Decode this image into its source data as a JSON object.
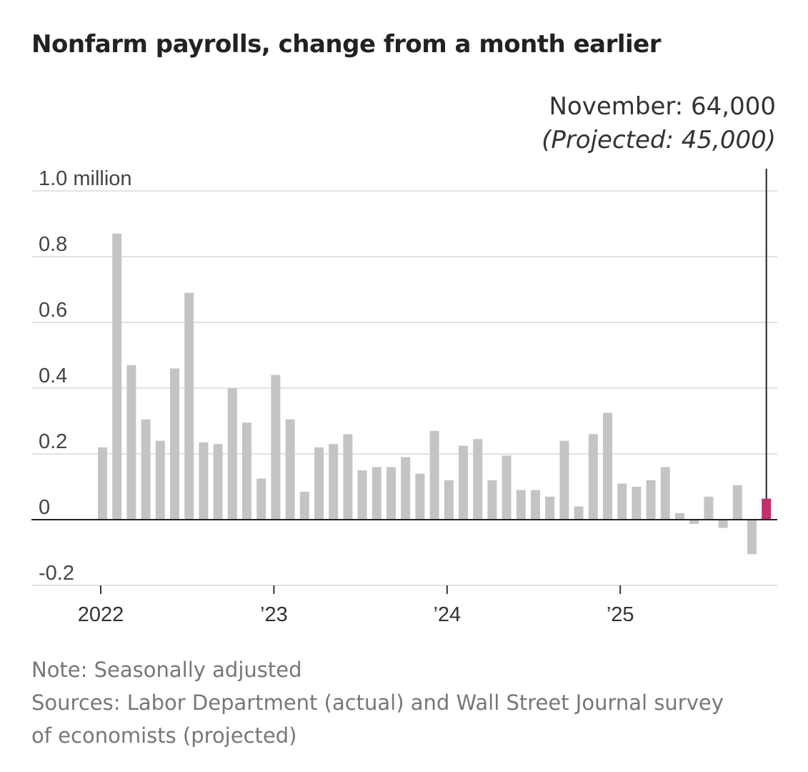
{
  "chart_data": {
    "type": "bar",
    "title": "Nonfarm payrolls, change from a month earlier",
    "y_unit_label": "1.0 million",
    "ylim": [
      -0.2,
      1.0
    ],
    "y_ticks": [
      {
        "value": 1.0,
        "label": "1.0 million"
      },
      {
        "value": 0.8,
        "label": "0.8"
      },
      {
        "value": 0.6,
        "label": "0.6"
      },
      {
        "value": 0.4,
        "label": "0.4"
      },
      {
        "value": 0.2,
        "label": "0.2"
      },
      {
        "value": 0,
        "label": "0"
      },
      {
        "value": -0.2,
        "label": "-0.2"
      }
    ],
    "x_ticks": [
      {
        "index": 0,
        "label": "2022"
      },
      {
        "index": 12,
        "label": "’23"
      },
      {
        "index": 24,
        "label": "’24"
      },
      {
        "index": 36,
        "label": "’25"
      }
    ],
    "months": [
      "Jan 2022",
      "Feb 2022",
      "Mar 2022",
      "Apr 2022",
      "May 2022",
      "Jun 2022",
      "Jul 2022",
      "Aug 2022",
      "Sep 2022",
      "Oct 2022",
      "Nov 2022",
      "Dec 2022",
      "Jan 2023",
      "Feb 2023",
      "Mar 2023",
      "Apr 2023",
      "May 2023",
      "Jun 2023",
      "Jul 2023",
      "Aug 2023",
      "Sep 2023",
      "Oct 2023",
      "Nov 2023",
      "Dec 2023",
      "Jan 2024",
      "Feb 2024",
      "Mar 2024",
      "Apr 2024",
      "May 2024",
      "Jun 2024",
      "Jul 2024",
      "Aug 2024",
      "Sep 2024",
      "Oct 2024",
      "Nov 2024",
      "Dec 2024",
      "Jan 2025",
      "Feb 2025",
      "Mar 2025",
      "Apr 2025",
      "May 2025",
      "Jun 2025",
      "Jul 2025",
      "Aug 2025",
      "Sep 2025",
      "Oct 2025",
      "Nov 2025"
    ],
    "values": [
      0.22,
      0.87,
      0.47,
      0.305,
      0.24,
      0.46,
      0.69,
      0.235,
      0.23,
      0.4,
      0.295,
      0.125,
      0.44,
      0.305,
      0.085,
      0.22,
      0.23,
      0.26,
      0.15,
      0.16,
      0.16,
      0.19,
      0.14,
      0.27,
      0.12,
      0.225,
      0.245,
      0.12,
      0.195,
      0.09,
      0.09,
      0.07,
      0.24,
      0.04,
      0.26,
      0.325,
      0.11,
      0.1,
      0.12,
      0.16,
      0.02,
      -0.013,
      0.07,
      -0.025,
      0.105,
      -0.105,
      0.064
    ],
    "highlight_index": 46,
    "bar_color": "#c4c4c4",
    "highlight_color": "#c2306e",
    "annotation": {
      "line1": "November: 64,000",
      "line2": "(Projected: 45,000)"
    }
  },
  "footer": {
    "note": "Note: Seasonally adjusted",
    "sources_line1": "Sources: Labor Department (actual) and Wall Street Journal survey",
    "sources_line2": "of economists (projected)"
  }
}
